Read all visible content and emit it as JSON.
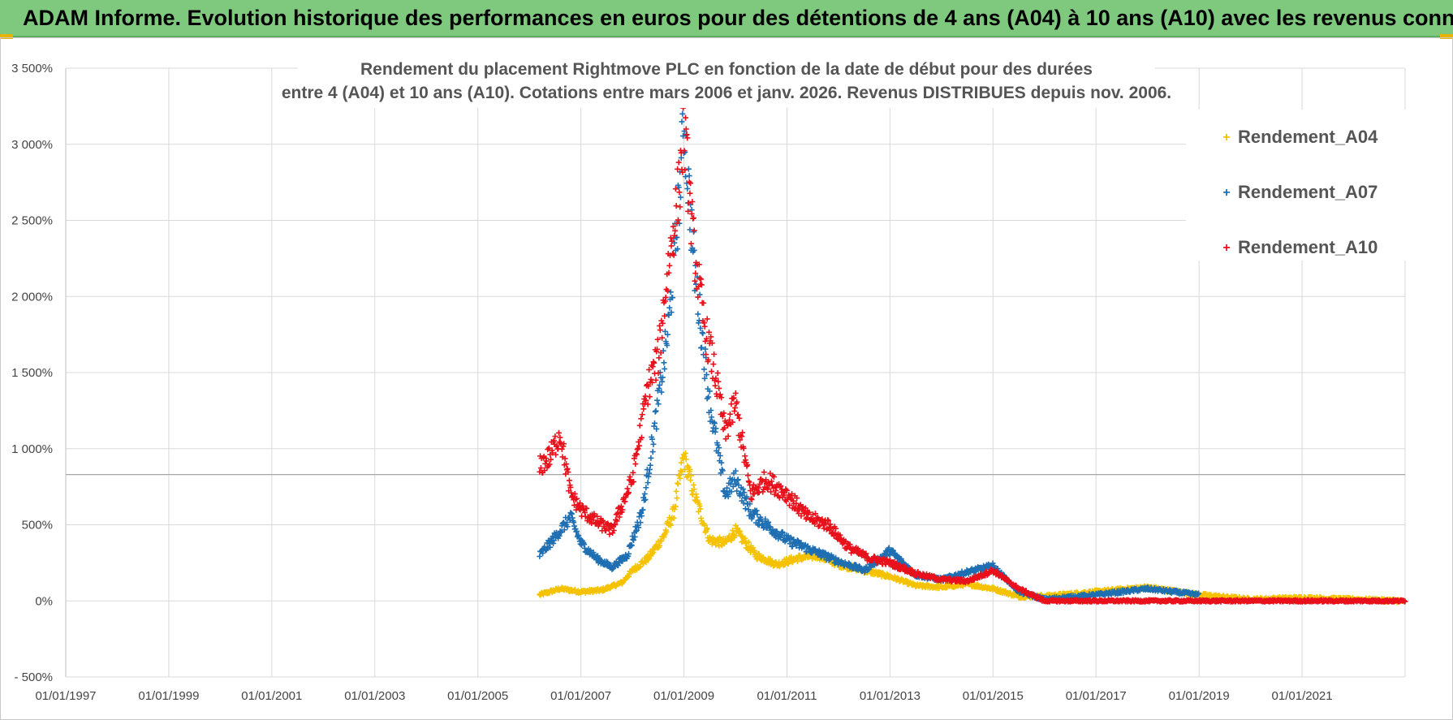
{
  "banner": {
    "title": "ADAM Informe. Evolution historique des performances en euros pour des détentions de 4 ans (A04) à 10 ans (A10) avec les revenus connus distribués"
  },
  "colors": {
    "banner_bg": "#7fc97f",
    "A04": "#f5c200",
    "A07": "#1f6fb2",
    "A10": "#e8111b",
    "grid": "#d9d9d9"
  },
  "chart_data": {
    "type": "scatter",
    "title_lines": [
      "Rendement du placement Rightmove PLC en fonction de la date de début pour des durées",
      "entre 4 (A04) et 10 ans (A10). Cotations entre mars 2006 et janv. 2026. Revenus DISTRIBUES depuis nov. 2006."
    ],
    "ylim": [
      -500,
      3500
    ],
    "y_ticks": [
      -500,
      0,
      500,
      1000,
      1500,
      2000,
      2500,
      3000,
      3500
    ],
    "y_tick_labels": [
      "- 500%",
      "0%",
      "500%",
      "1 000%",
      "1 500%",
      "2 000%",
      "2 500%",
      "3 000%",
      "3 500%"
    ],
    "xlim": [
      "1997-01-01",
      "2023-01-01"
    ],
    "x_tick_labels": [
      "01/01/1997",
      "01/01/1999",
      "01/01/2001",
      "01/01/2003",
      "01/01/2005",
      "01/01/2007",
      "01/01/2009",
      "01/01/2011",
      "01/01/2013",
      "01/01/2015",
      "01/01/2017",
      "01/01/2019",
      "01/01/2021"
    ],
    "reference_line_y": 830,
    "marker": "+",
    "legend_position": "top-right",
    "series": [
      {
        "name": "Rendement_A04",
        "color": "#f5c200",
        "end": 2022.95,
        "x": [
          2006.2,
          2006.6,
          2007.0,
          2007.4,
          2007.8,
          2008.0,
          2008.3,
          2008.6,
          2008.8,
          2009.0,
          2009.2,
          2009.5,
          2009.8,
          2010.0,
          2010.4,
          2010.8,
          2011.2,
          2011.6,
          2012.0,
          2012.5,
          2013.0,
          2013.5,
          2014.0,
          2014.5,
          2015.0,
          2015.5,
          2016.0,
          2017.0,
          2018.0,
          2019.0,
          2020.0,
          2021.0,
          2022.0,
          2022.95
        ],
        "y": [
          40,
          80,
          60,
          70,
          120,
          200,
          280,
          420,
          580,
          950,
          700,
          400,
          380,
          460,
          300,
          240,
          280,
          300,
          240,
          200,
          160,
          100,
          90,
          110,
          80,
          30,
          30,
          60,
          90,
          40,
          10,
          20,
          10,
          0
        ]
      },
      {
        "name": "Rendement_A07",
        "color": "#1f6fb2",
        "end": 2019.0,
        "x": [
          2006.2,
          2006.5,
          2006.8,
          2007.0,
          2007.3,
          2007.6,
          2007.9,
          2008.2,
          2008.5,
          2008.7,
          2008.9,
          2009.0,
          2009.2,
          2009.5,
          2009.8,
          2010.0,
          2010.3,
          2010.6,
          2011.0,
          2011.5,
          2012.0,
          2012.5,
          2013.0,
          2013.5,
          2014.0,
          2014.5,
          2015.0,
          2015.5,
          2016.0,
          2017.0,
          2018.0,
          2019.0
        ],
        "y": [
          300,
          420,
          550,
          380,
          280,
          220,
          300,
          600,
          1300,
          1800,
          2600,
          3150,
          2200,
          1300,
          700,
          800,
          580,
          500,
          400,
          330,
          260,
          200,
          330,
          170,
          140,
          190,
          230,
          60,
          10,
          40,
          80,
          40
        ]
      },
      {
        "name": "Rendement_A10",
        "color": "#e8111b",
        "end": 2023.0,
        "x": [
          2006.2,
          2006.4,
          2006.6,
          2006.8,
          2007.0,
          2007.3,
          2007.6,
          2008.0,
          2008.3,
          2008.5,
          2008.7,
          2008.9,
          2009.0,
          2009.2,
          2009.4,
          2009.6,
          2009.8,
          2010.0,
          2010.3,
          2010.6,
          2011.0,
          2011.4,
          2011.8,
          2012.2,
          2012.6,
          2013.0,
          2013.5,
          2014.0,
          2014.5,
          2015.0,
          2015.5,
          2016.0,
          2017.0,
          2018.0,
          2019.0,
          2020.0,
          2021.0,
          2022.0,
          2023.0
        ],
        "y": [
          880,
          950,
          1100,
          700,
          600,
          520,
          460,
          800,
          1400,
          1600,
          2200,
          2700,
          3100,
          2300,
          1800,
          1500,
          1100,
          1300,
          700,
          800,
          700,
          550,
          500,
          350,
          280,
          250,
          180,
          140,
          130,
          200,
          80,
          0,
          0,
          0,
          0,
          0,
          0,
          0,
          0
        ]
      }
    ]
  }
}
